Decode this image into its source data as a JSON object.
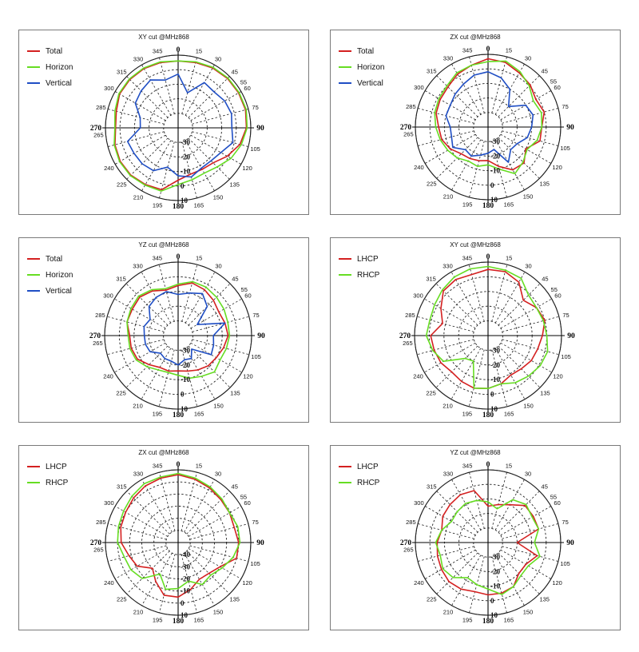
{
  "chart_data": [
    {
      "type": "polar-line",
      "title": "XY cut @MHz868",
      "angle_labels": [
        "0",
        "15",
        "30",
        "45",
        "55",
        "60",
        "75",
        "90",
        "105",
        "120",
        "135",
        "150",
        "165",
        "180",
        "195",
        "210",
        "225",
        "240",
        "265",
        "270",
        "285",
        "300",
        "315",
        "330",
        "345"
      ],
      "radial_labels": [
        "-30",
        "-20",
        "-10",
        "0",
        "10"
      ],
      "series": [
        {
          "name": "Total",
          "color": "#d42020"
        },
        {
          "name": "Horizon",
          "color": "#66dd22"
        },
        {
          "name": "Vertical",
          "color": "#1f4ec4"
        }
      ]
    },
    {
      "type": "polar-line",
      "title": "ZX cut @MHz868",
      "angle_labels": [
        "0",
        "15",
        "30",
        "45",
        "55",
        "60",
        "75",
        "90",
        "105",
        "120",
        "135",
        "150",
        "165",
        "180",
        "195",
        "210",
        "225",
        "240",
        "265",
        "270",
        "285",
        "300",
        "315",
        "330",
        "345"
      ],
      "radial_labels": [
        "-30",
        "-20",
        "-10",
        "0",
        "10"
      ],
      "series": [
        {
          "name": "Total",
          "color": "#d42020"
        },
        {
          "name": "Horizon",
          "color": "#66dd22"
        },
        {
          "name": "Vertical",
          "color": "#1f4ec4"
        }
      ]
    },
    {
      "type": "polar-line",
      "title": "YZ cut @MHz868",
      "angle_labels": [
        "0",
        "15",
        "30",
        "45",
        "55",
        "60",
        "75",
        "90",
        "105",
        "120",
        "135",
        "150",
        "165",
        "180",
        "195",
        "210",
        "225",
        "240",
        "265",
        "270",
        "285",
        "300",
        "315",
        "330",
        "345"
      ],
      "radial_labels": [
        "-30",
        "-20",
        "-10",
        "0",
        "10"
      ],
      "series": [
        {
          "name": "Total",
          "color": "#d42020"
        },
        {
          "name": "Horizon",
          "color": "#66dd22"
        },
        {
          "name": "Vertical",
          "color": "#1f4ec4"
        }
      ]
    },
    {
      "type": "polar-line",
      "title": "XY cut @MHz868",
      "angle_labels": [
        "0",
        "15",
        "30",
        "45",
        "55",
        "60",
        "75",
        "90",
        "105",
        "120",
        "135",
        "150",
        "165",
        "180",
        "195",
        "210",
        "225",
        "240",
        "265",
        "270",
        "285",
        "300",
        "315",
        "330",
        "345"
      ],
      "radial_labels": [
        "-30",
        "-20",
        "-10",
        "0",
        "10"
      ],
      "series": [
        {
          "name": "LHCP",
          "color": "#d42020"
        },
        {
          "name": "RHCP",
          "color": "#66dd22"
        }
      ]
    },
    {
      "type": "polar-line",
      "title": "ZX cut @MHz868",
      "angle_labels": [
        "0",
        "15",
        "30",
        "45",
        "55",
        "60",
        "75",
        "90",
        "105",
        "120",
        "135",
        "150",
        "165",
        "180",
        "195",
        "210",
        "225",
        "240",
        "265",
        "270",
        "285",
        "300",
        "315",
        "330",
        "345"
      ],
      "radial_labels": [
        "-40",
        "-30",
        "-20",
        "-10",
        "0",
        "10"
      ],
      "series": [
        {
          "name": "LHCP",
          "color": "#d42020"
        },
        {
          "name": "RHCP",
          "color": "#66dd22"
        }
      ]
    },
    {
      "type": "polar-line",
      "title": "YZ cut @MHz868",
      "angle_labels": [
        "0",
        "15",
        "30",
        "45",
        "55",
        "60",
        "75",
        "90",
        "105",
        "120",
        "135",
        "150",
        "165",
        "180",
        "195",
        "210",
        "225",
        "240",
        "265",
        "270",
        "285",
        "300",
        "315",
        "330",
        "345"
      ],
      "radial_labels": [
        "-30",
        "-20",
        "-10",
        "0",
        "10"
      ],
      "series": [
        {
          "name": "LHCP",
          "color": "#d42020"
        },
        {
          "name": "RHCP",
          "color": "#66dd22"
        }
      ]
    }
  ]
}
